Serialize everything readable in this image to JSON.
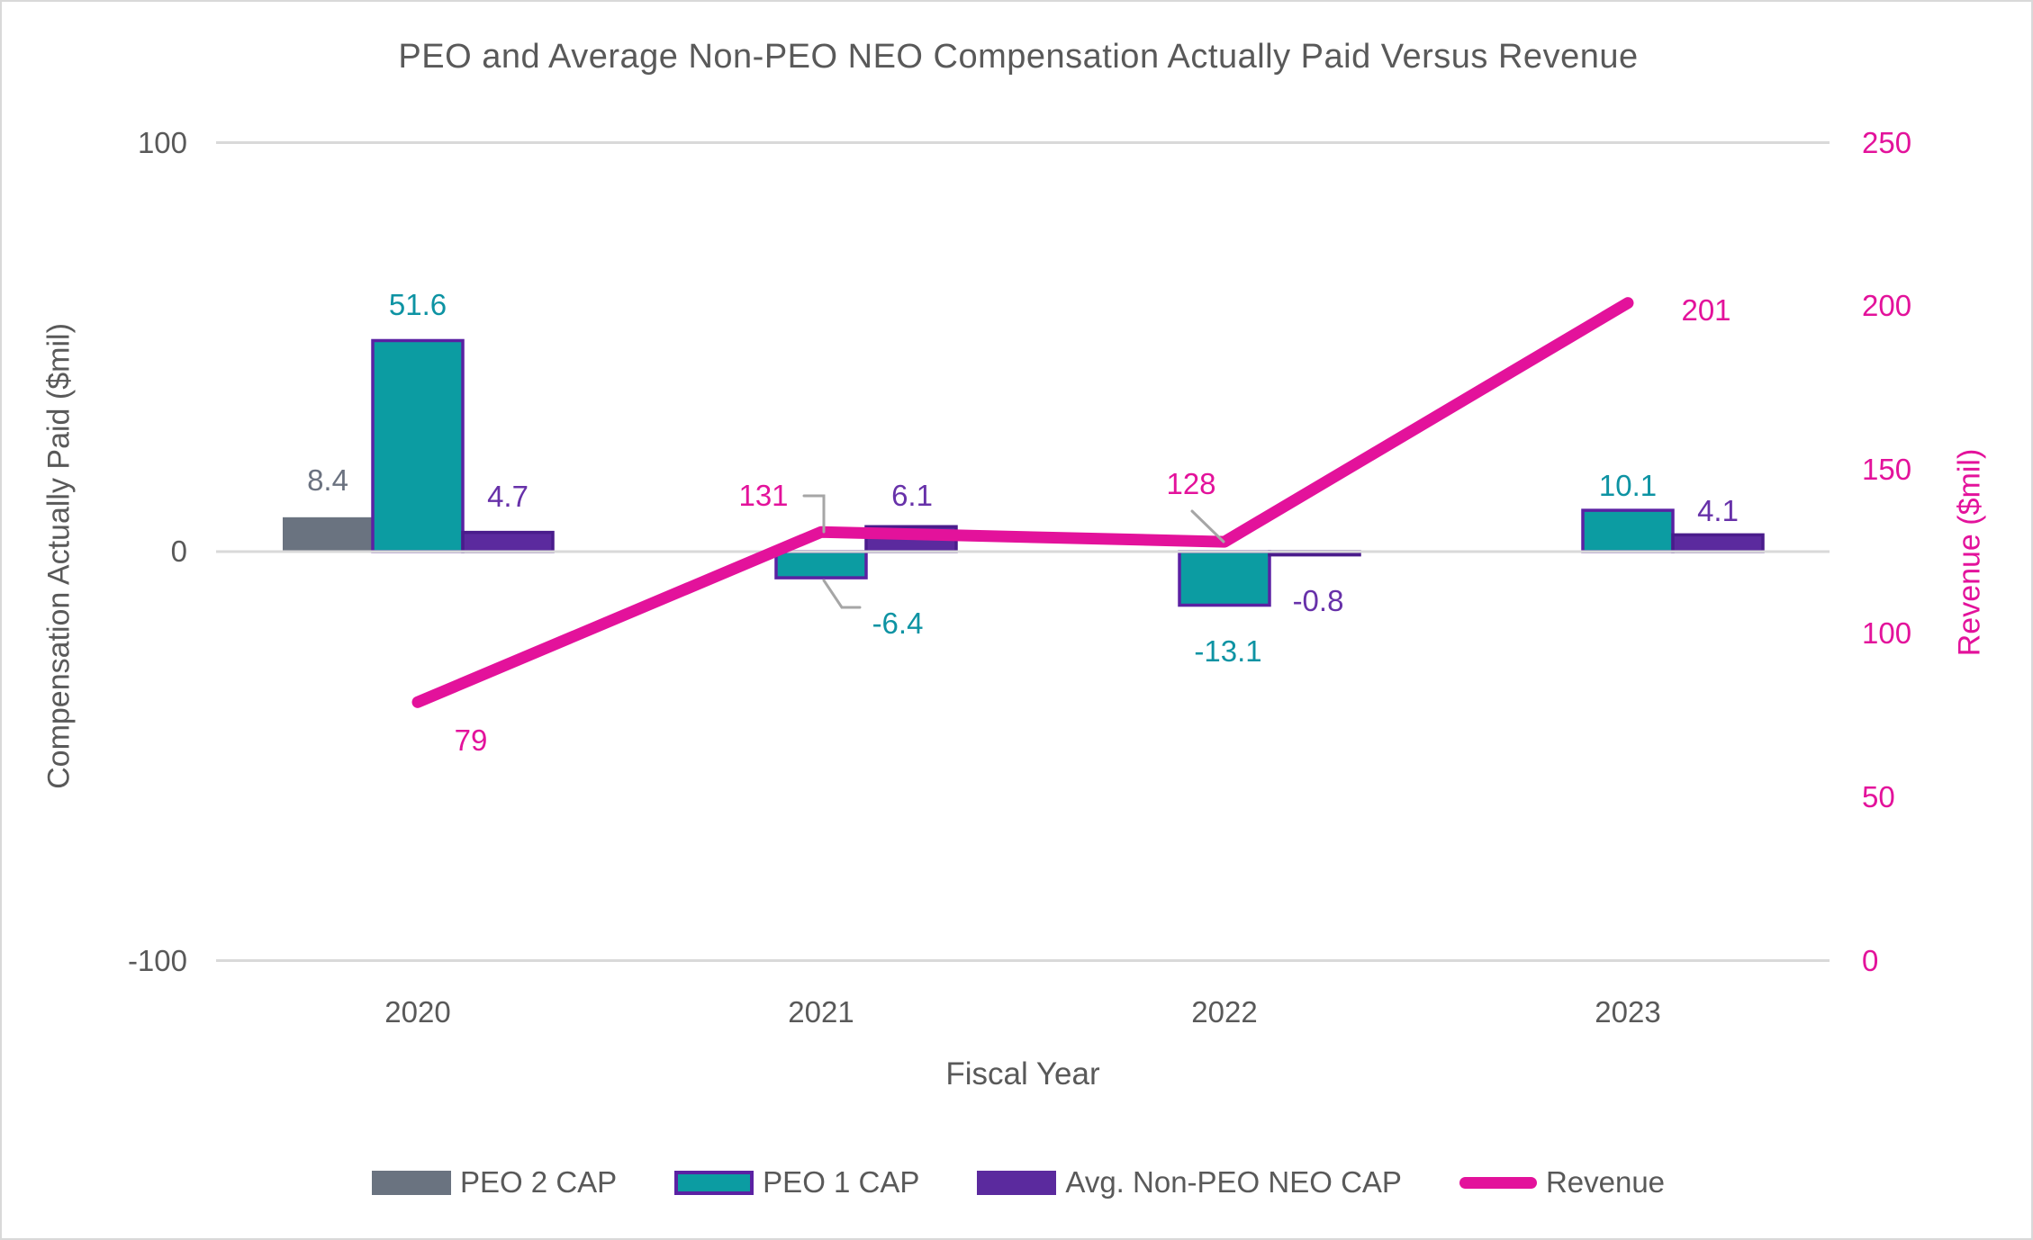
{
  "chart_data": {
    "type": "combo",
    "title": "PEO and Average Non-PEO NEO Compensation Actually Paid Versus Revenue",
    "xlabel": "Fiscal Year",
    "ylabel_left": "Compensation Actually Paid ($mil)",
    "ylabel_right": "Revenue ($mil)",
    "categories": [
      "2020",
      "2021",
      "2022",
      "2023"
    ],
    "series": [
      {
        "name": "PEO 2 CAP",
        "type": "bar",
        "axis": "left",
        "values": [
          8.4,
          null,
          null,
          null
        ],
        "labels": [
          "8.4",
          "",
          "",
          ""
        ]
      },
      {
        "name": "PEO 1 CAP",
        "type": "bar",
        "axis": "left",
        "values": [
          51.6,
          -6.4,
          -13.1,
          10.1
        ],
        "labels": [
          "51.6",
          "-6.4",
          "-13.1",
          "10.1"
        ]
      },
      {
        "name": "Avg. Non-PEO NEO CAP",
        "type": "bar",
        "axis": "left",
        "values": [
          4.7,
          6.1,
          -0.8,
          4.1
        ],
        "labels": [
          "4.7",
          "6.1",
          "-0.8",
          "4.1"
        ]
      },
      {
        "name": "Revenue",
        "type": "line",
        "axis": "right",
        "values": [
          79,
          131,
          128,
          201
        ],
        "labels": [
          "79",
          "131",
          "128",
          "201"
        ]
      }
    ],
    "ylim_left": [
      -100,
      100
    ],
    "ylim_right": [
      0,
      250
    ],
    "left_ticks": [
      "100",
      "0",
      "-100"
    ],
    "right_ticks": [
      "250",
      "200",
      "150",
      "100",
      "50",
      "0"
    ],
    "grid": "horizontal-left-ticks-only",
    "legend_position": "bottom",
    "colors": {
      "peo2_bar": "#6a7380",
      "peo1_bar_fill": "#0c9ca2",
      "peo1_bar_border": "#5b21a3",
      "neo_bar_fill": "#5b2a9e",
      "neo_bar_border": "#4a1c8c",
      "revenue_line": "#e3129b",
      "peo2_label": "#6b7280",
      "peo1_label": "#0d93a3",
      "neo_label": "#6731a9",
      "revenue_label": "#e3129b",
      "axis_text": "#595959",
      "gridline": "#d9d9d9",
      "leader_line": "#a6a6a6"
    }
  }
}
